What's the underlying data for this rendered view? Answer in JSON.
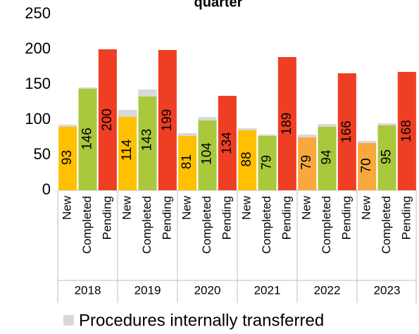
{
  "chart_data": {
    "type": "bar",
    "title": "quarter",
    "groups": [
      "2018",
      "2019",
      "2020",
      "2021",
      "2022",
      "2023"
    ],
    "categories": [
      "New",
      "Completed",
      "Pending",
      "New",
      "Completed",
      "Pending",
      "New",
      "Completed",
      "Pending",
      "New",
      "Completed",
      "Pending",
      "New",
      "Completed",
      "Pending",
      "New",
      "Completed",
      "Pending"
    ],
    "values": [
      93,
      146,
      200,
      114,
      143,
      199,
      81,
      104,
      134,
      88,
      79,
      189,
      79,
      94,
      166,
      70,
      95,
      168
    ],
    "colors": [
      "#FFC000",
      "#A9C83C",
      "#EE3F24",
      "#FFC000",
      "#A9C83C",
      "#EE3F24",
      "#FFC000",
      "#A9C83C",
      "#EE3F24",
      "#FFC000",
      "#A9C83C",
      "#EE3F24",
      "#F9A83E",
      "#A9C83C",
      "#EE3F24",
      "#F9A83E",
      "#A9C83C",
      "#EE3F24"
    ],
    "series": [
      {
        "name": "Procedures internally transferred",
        "color": "#D9D9D9",
        "values": [
          3,
          2,
          0,
          10,
          10,
          0,
          4,
          5,
          0,
          3,
          2,
          0,
          4,
          4,
          0,
          3,
          3,
          0
        ]
      }
    ],
    "ylim": [
      0,
      250
    ],
    "yticks": [
      0,
      50,
      100,
      150,
      200,
      250
    ]
  }
}
